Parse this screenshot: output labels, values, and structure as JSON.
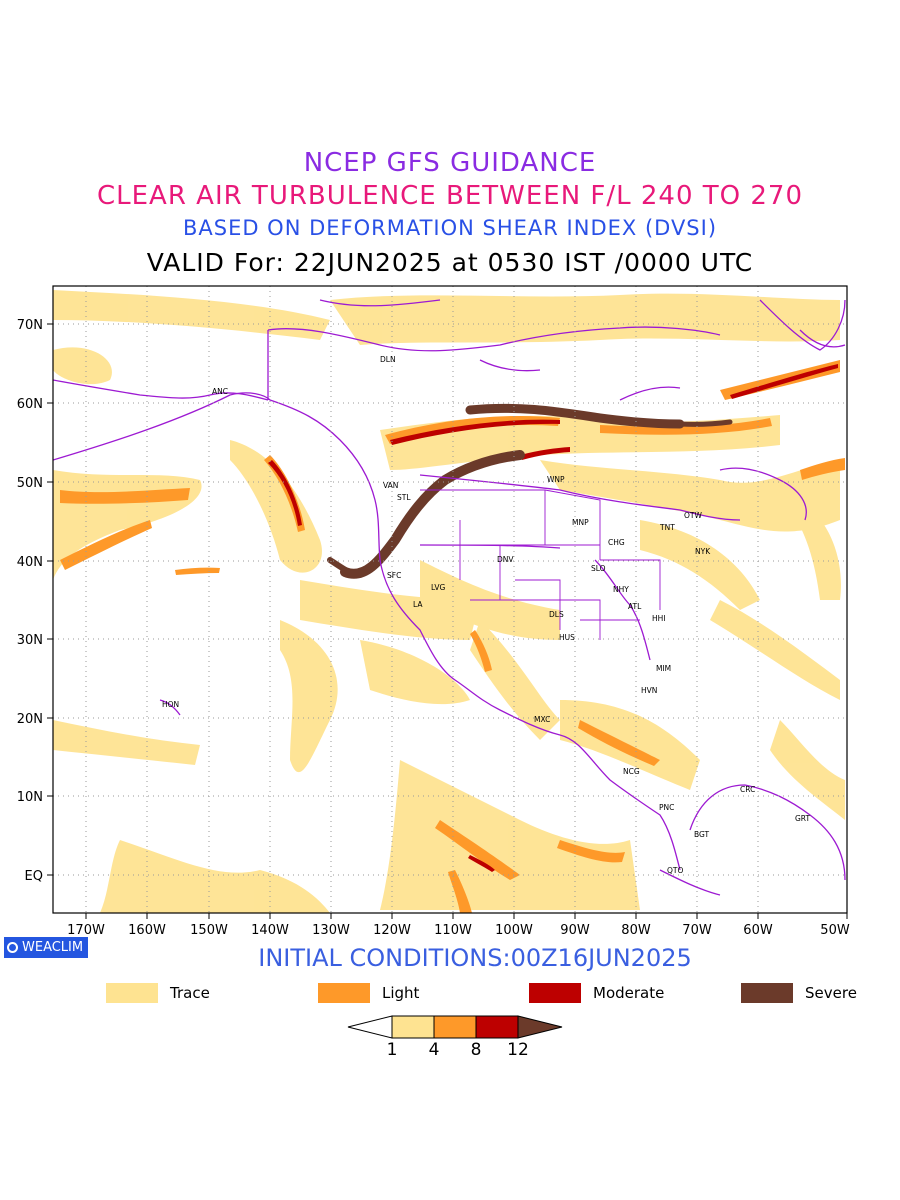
{
  "titles": {
    "line1": "NCEP GFS GUIDANCE",
    "line2": "CLEAR AIR TURBULENCE BETWEEN F/L 240 TO 270",
    "line3": "BASED ON DEFORMATION SHEAR INDEX (DVSI)",
    "line4": "VALID For: 22JUN2025 at 0530 IST /0000 UTC"
  },
  "map": {
    "lon_ticks": [
      "170W",
      "160W",
      "150W",
      "140W",
      "130W",
      "120W",
      "110W",
      "100W",
      "90W",
      "80W",
      "70W",
      "60W",
      "50W"
    ],
    "lat_ticks": [
      "70N",
      "60N",
      "50N",
      "40N",
      "30N",
      "20N",
      "10N",
      "EQ"
    ],
    "stations": [
      "DLN",
      "ANC",
      "VAN",
      "STL",
      "WNP",
      "MNP",
      "OTW",
      "TNT",
      "CHG",
      "NYK",
      "DNV",
      "SFC",
      "LVG",
      "SLO",
      "NHY",
      "LA",
      "ATL",
      "DLS",
      "HHI",
      "HUS",
      "MIM",
      "HVN",
      "HON",
      "MXC",
      "NCG",
      "CRC",
      "PNC",
      "GRT",
      "BGT",
      "QTO"
    ],
    "colors": {
      "trace": "#fee391",
      "light": "#fe9929",
      "moderate": "#bd0000",
      "severe": "#6b3a2a",
      "coastline": "#9d1ad2"
    }
  },
  "logo": "WEACLIM",
  "initial_conditions": "INITIAL CONDITIONS:00Z16JUN2025",
  "legend": [
    {
      "label": "Trace",
      "color": "#fee391"
    },
    {
      "label": "Light",
      "color": "#fe9929"
    },
    {
      "label": "Moderate",
      "color": "#bd0000"
    },
    {
      "label": "Severe",
      "color": "#6b3a2a"
    }
  ],
  "colorbar": {
    "labels": [
      "1",
      "4",
      "8",
      "12"
    ],
    "colors": [
      "#ffffff",
      "#fee391",
      "#fe9929",
      "#bd0000",
      "#6b3a2a"
    ]
  }
}
